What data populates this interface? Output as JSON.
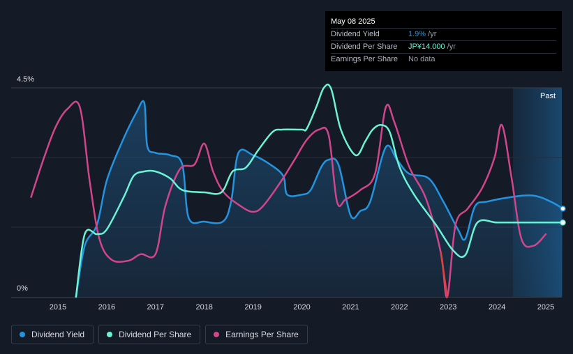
{
  "tooltip": {
    "date": "May 08 2025",
    "rows": [
      {
        "label": "Dividend Yield",
        "value": "1.9%",
        "unit": " /yr"
      },
      {
        "label": "Dividend Per Share",
        "value": "JP¥14.000",
        "unit": " /yr"
      },
      {
        "label": "Earnings Per Share",
        "value": "No data",
        "unit": ""
      }
    ]
  },
  "past_label": "Past",
  "legend": [
    {
      "label": "Dividend Yield",
      "color": "#2394df"
    },
    {
      "label": "Dividend Per Share",
      "color": "#6cf3d5"
    },
    {
      "label": "Earnings Per Share",
      "color": "#d1468b"
    }
  ],
  "chart_data": {
    "type": "line",
    "ylim": [
      0,
      4.5
    ],
    "y_tick_labels": [
      "4.5%",
      "0%"
    ],
    "x_tick_labels": [
      "2015",
      "2016",
      "2017",
      "2018",
      "2019",
      "2020",
      "2021",
      "2022",
      "2023",
      "2024",
      "2025"
    ],
    "series": [
      {
        "name": "Dividend Yield",
        "color": "#2394df",
        "area": true,
        "points": [
          [
            2015.37,
            0.0
          ],
          [
            2015.55,
            1.1
          ],
          [
            2015.8,
            1.55
          ],
          [
            2016.0,
            2.5
          ],
          [
            2016.3,
            3.3
          ],
          [
            2016.6,
            3.95
          ],
          [
            2016.77,
            4.18
          ],
          [
            2016.83,
            3.25
          ],
          [
            2017.0,
            3.1
          ],
          [
            2017.3,
            3.05
          ],
          [
            2017.55,
            2.85
          ],
          [
            2017.68,
            1.7
          ],
          [
            2018.0,
            1.62
          ],
          [
            2018.38,
            1.62
          ],
          [
            2018.55,
            2.05
          ],
          [
            2018.7,
            3.1
          ],
          [
            2019.0,
            3.05
          ],
          [
            2019.35,
            2.85
          ],
          [
            2019.62,
            2.6
          ],
          [
            2019.7,
            2.2
          ],
          [
            2020.0,
            2.2
          ],
          [
            2020.18,
            2.3
          ],
          [
            2020.4,
            2.8
          ],
          [
            2020.55,
            2.95
          ],
          [
            2020.75,
            2.85
          ],
          [
            2021.0,
            1.75
          ],
          [
            2021.2,
            1.85
          ],
          [
            2021.4,
            2.05
          ],
          [
            2021.72,
            3.22
          ],
          [
            2021.95,
            2.95
          ],
          [
            2022.2,
            2.65
          ],
          [
            2022.6,
            2.55
          ],
          [
            2022.9,
            2.05
          ],
          [
            2023.2,
            1.45
          ],
          [
            2023.35,
            1.25
          ],
          [
            2023.55,
            1.95
          ],
          [
            2023.8,
            2.05
          ],
          [
            2024.3,
            2.15
          ],
          [
            2024.75,
            2.18
          ],
          [
            2025.1,
            2.05
          ],
          [
            2025.35,
            1.9
          ]
        ]
      },
      {
        "name": "Dividend Per Share",
        "color": "#6cf3d5",
        "area": false,
        "points": [
          [
            2015.37,
            0.0
          ],
          [
            2015.55,
            1.35
          ],
          [
            2015.8,
            1.35
          ],
          [
            2016.0,
            1.45
          ],
          [
            2016.35,
            2.15
          ],
          [
            2016.55,
            2.6
          ],
          [
            2016.77,
            2.7
          ],
          [
            2017.0,
            2.7
          ],
          [
            2017.3,
            2.55
          ],
          [
            2017.55,
            2.3
          ],
          [
            2018.0,
            2.25
          ],
          [
            2018.35,
            2.25
          ],
          [
            2018.58,
            2.7
          ],
          [
            2018.85,
            2.78
          ],
          [
            2019.1,
            3.15
          ],
          [
            2019.4,
            3.55
          ],
          [
            2019.6,
            3.6
          ],
          [
            2020.0,
            3.6
          ],
          [
            2020.1,
            3.62
          ],
          [
            2020.3,
            4.1
          ],
          [
            2020.45,
            4.5
          ],
          [
            2020.6,
            4.48
          ],
          [
            2020.8,
            3.6
          ],
          [
            2021.1,
            3.05
          ],
          [
            2021.3,
            3.35
          ],
          [
            2021.45,
            3.6
          ],
          [
            2021.62,
            3.7
          ],
          [
            2021.8,
            3.55
          ],
          [
            2022.0,
            2.8
          ],
          [
            2022.3,
            2.2
          ],
          [
            2022.75,
            1.55
          ],
          [
            2023.1,
            1.0
          ],
          [
            2023.35,
            0.9
          ],
          [
            2023.6,
            1.6
          ],
          [
            2024.0,
            1.6
          ],
          [
            2024.5,
            1.6
          ],
          [
            2025.35,
            1.6
          ]
        ]
      },
      {
        "name": "Earnings Per Share",
        "color": "#d1468b",
        "area": false,
        "points": [
          [
            2014.45,
            2.15
          ],
          [
            2014.7,
            2.95
          ],
          [
            2014.95,
            3.65
          ],
          [
            2015.2,
            4.05
          ],
          [
            2015.45,
            4.08
          ],
          [
            2015.65,
            2.5
          ],
          [
            2015.85,
            1.25
          ],
          [
            2016.1,
            0.8
          ],
          [
            2016.45,
            0.78
          ],
          [
            2016.7,
            0.92
          ],
          [
            2017.0,
            0.92
          ],
          [
            2017.2,
            1.95
          ],
          [
            2017.5,
            2.75
          ],
          [
            2017.8,
            2.85
          ],
          [
            2018.0,
            3.3
          ],
          [
            2018.18,
            2.7
          ],
          [
            2018.4,
            2.25
          ],
          [
            2018.75,
            1.95
          ],
          [
            2019.0,
            1.83
          ],
          [
            2019.2,
            1.95
          ],
          [
            2019.55,
            2.45
          ],
          [
            2019.85,
            2.95
          ],
          [
            2020.1,
            3.38
          ],
          [
            2020.35,
            3.6
          ],
          [
            2020.55,
            3.48
          ],
          [
            2020.72,
            2.05
          ],
          [
            2020.9,
            2.1
          ],
          [
            2021.2,
            2.3
          ],
          [
            2021.5,
            2.65
          ],
          [
            2021.72,
            4.08
          ],
          [
            2021.9,
            3.75
          ],
          [
            2022.2,
            2.8
          ],
          [
            2022.55,
            2.1
          ],
          [
            2022.85,
            0.95
          ],
          [
            2022.98,
            0.0
          ],
          [
            2023.15,
            1.55
          ],
          [
            2023.4,
            1.9
          ],
          [
            2023.7,
            2.35
          ],
          [
            2023.95,
            3.0
          ],
          [
            2024.1,
            3.7
          ],
          [
            2024.3,
            2.55
          ],
          [
            2024.5,
            1.25
          ],
          [
            2024.75,
            1.1
          ],
          [
            2025.0,
            1.35
          ]
        ]
      }
    ]
  }
}
